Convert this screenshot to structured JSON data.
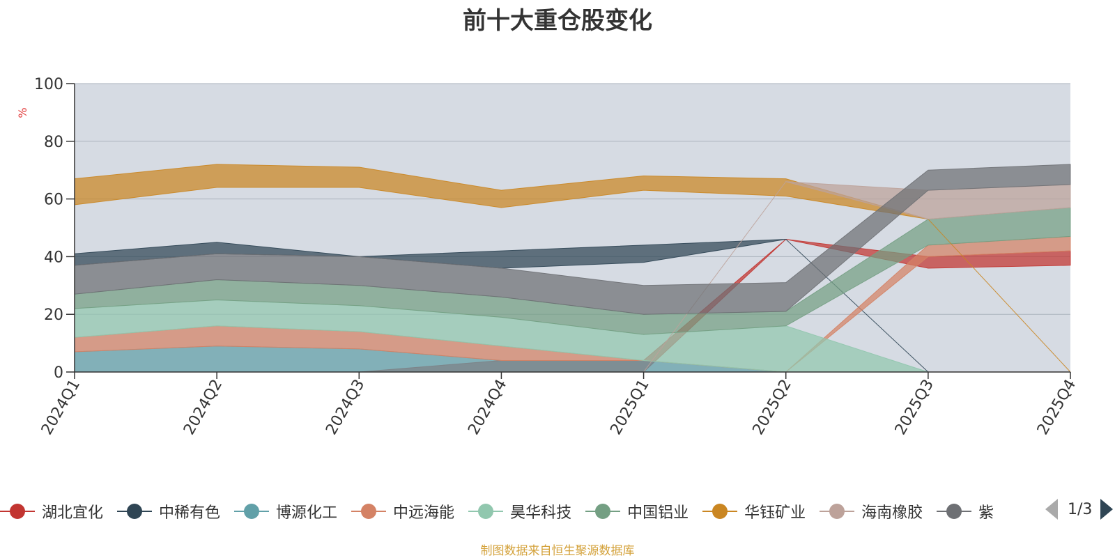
{
  "chart_data": {
    "type": "area",
    "stacked": false,
    "title": "前十大重仓股变化",
    "ylabel": "%",
    "ylim": [
      0,
      100
    ],
    "yticks": [
      0,
      20,
      40,
      60,
      80,
      100
    ],
    "categories": [
      "2024Q1",
      "2024Q2",
      "2024Q3",
      "2024Q4",
      "2025Q1",
      "2025Q2",
      "2025Q3",
      "2025Q4"
    ],
    "plot_background": "#d6dbe3",
    "series": [
      {
        "name": "湖北宜化",
        "color": "#c23531",
        "lower": [
          0,
          0,
          0,
          0,
          0,
          46,
          36,
          37
        ],
        "upper": [
          0,
          0,
          0,
          4,
          4,
          46,
          40,
          42
        ]
      },
      {
        "name": "中稀有色",
        "color": "#2f4554",
        "lower": [
          37,
          41,
          40,
          36,
          38,
          46,
          0,
          0
        ],
        "upper": [
          41,
          45,
          40,
          42,
          44,
          46,
          0,
          0
        ]
      },
      {
        "name": "博源化工",
        "color": "#61a0a8",
        "lower": [
          0,
          0,
          0,
          0,
          0,
          0,
          0,
          0
        ],
        "upper": [
          7,
          9,
          8,
          4,
          4,
          0,
          0,
          0
        ]
      },
      {
        "name": "中远海能",
        "color": "#d48265",
        "lower": [
          7,
          9,
          8,
          4,
          4,
          0,
          40,
          42
        ],
        "upper": [
          12,
          16,
          14,
          9,
          4,
          0,
          44,
          47
        ]
      },
      {
        "name": "昊华科技",
        "color": "#91c7ae",
        "lower": [
          12,
          16,
          14,
          9,
          4,
          0,
          0,
          0
        ],
        "upper": [
          22,
          25,
          23,
          19,
          13,
          16,
          0,
          0
        ]
      },
      {
        "name": "中国铝业",
        "color": "#749f83",
        "lower": [
          22,
          25,
          23,
          19,
          13,
          16,
          44,
          47
        ],
        "upper": [
          27,
          32,
          30,
          26,
          20,
          21,
          53,
          57
        ]
      },
      {
        "name": "华钰矿业",
        "color": "#ca8622",
        "lower": [
          58,
          64,
          64,
          57,
          63,
          61,
          53,
          0
        ],
        "upper": [
          67,
          72,
          71,
          63,
          68,
          67,
          53,
          0
        ]
      },
      {
        "name": "海南橡胶",
        "color": "#bda29a",
        "lower": [
          0,
          0,
          0,
          0,
          0,
          66,
          53,
          57
        ],
        "upper": [
          0,
          0,
          0,
          0,
          0,
          66,
          63,
          65
        ]
      },
      {
        "name": "紫金矿业",
        "color": "#6e7074",
        "lower": [
          27,
          32,
          30,
          26,
          20,
          21,
          63,
          65
        ],
        "upper": [
          37,
          41,
          40,
          36,
          30,
          31,
          70,
          72
        ]
      }
    ],
    "legend": {
      "position": "bottom",
      "page": "1/3",
      "visible_labels": [
        "湖北宜化",
        "中稀有色",
        "博源化工",
        "中远海能",
        "昊华科技",
        "中国铝业",
        "华钰矿业",
        "海南橡胶",
        "紫"
      ]
    },
    "source_note": "制图数据来自恒生聚源数据库"
  }
}
